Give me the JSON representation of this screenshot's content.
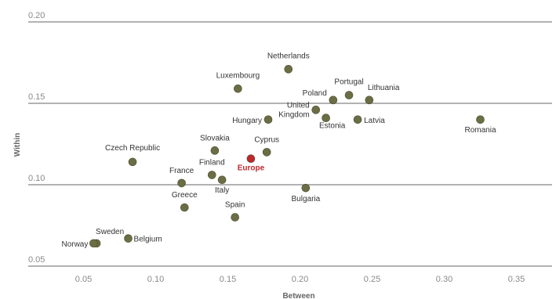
{
  "chart_data": {
    "type": "scatter",
    "xlabel": "Between",
    "ylabel": "Within",
    "xlim": [
      0.02,
      0.38
    ],
    "ylim": [
      0.05,
      0.2
    ],
    "x_ticks": [
      "0.05",
      "0.10",
      "0.15",
      "0.20",
      "0.25",
      "0.30",
      "0.35"
    ],
    "y_ticks": [
      "0.05",
      "0.10",
      "0.15",
      "0.20"
    ],
    "grid": "horizontal",
    "colors": {
      "point": "#6b6e45",
      "highlight": "#c0272d",
      "grid": "#333333"
    },
    "points": [
      {
        "label": "Netherlands",
        "x": 0.192,
        "y": 0.171
      },
      {
        "label": "Luxembourg",
        "x": 0.157,
        "y": 0.159
      },
      {
        "label": "Portugal",
        "x": 0.234,
        "y": 0.155
      },
      {
        "label": "Poland",
        "x": 0.223,
        "y": 0.152
      },
      {
        "label": "Lithuania",
        "x": 0.248,
        "y": 0.152
      },
      {
        "label": "United Kingdom",
        "x": 0.211,
        "y": 0.146
      },
      {
        "label": "Estonia",
        "x": 0.218,
        "y": 0.141
      },
      {
        "label": "Hungary",
        "x": 0.178,
        "y": 0.14
      },
      {
        "label": "Latvia",
        "x": 0.24,
        "y": 0.14
      },
      {
        "label": "Romania",
        "x": 0.325,
        "y": 0.14
      },
      {
        "label": "Slovakia",
        "x": 0.141,
        "y": 0.121
      },
      {
        "label": "Cyprus",
        "x": 0.177,
        "y": 0.12
      },
      {
        "label": "Europe",
        "x": 0.166,
        "y": 0.116,
        "highlight": true
      },
      {
        "label": "Czech Republic",
        "x": 0.084,
        "y": 0.114
      },
      {
        "label": "Finland",
        "x": 0.139,
        "y": 0.106
      },
      {
        "label": "Italy",
        "x": 0.146,
        "y": 0.103
      },
      {
        "label": "France",
        "x": 0.118,
        "y": 0.101
      },
      {
        "label": "Bulgaria",
        "x": 0.204,
        "y": 0.098
      },
      {
        "label": "Greece",
        "x": 0.12,
        "y": 0.086
      },
      {
        "label": "Spain",
        "x": 0.155,
        "y": 0.08
      },
      {
        "label": "Belgium",
        "x": 0.081,
        "y": 0.067
      },
      {
        "label": "Sweden",
        "x": 0.059,
        "y": 0.064
      },
      {
        "label": "Norway",
        "x": 0.057,
        "y": 0.064
      }
    ]
  }
}
